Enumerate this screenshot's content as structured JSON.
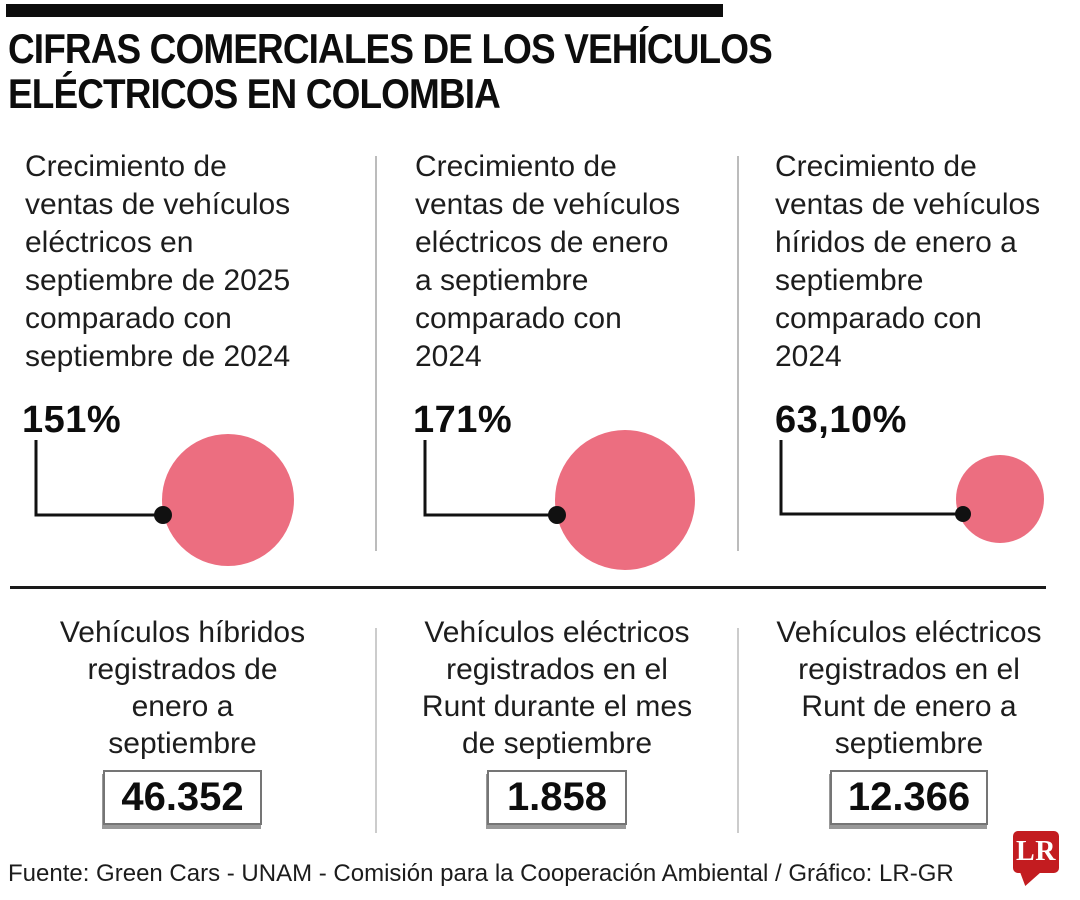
{
  "header": {
    "title_line1": "CIFRAS COMERCIALES DE LOS VEHÍCULOS",
    "title_line2": "ELÉCTRICOS EN COLOMBIA"
  },
  "colors": {
    "bubble_pink": "#EC6E80",
    "connector_black": "#111111",
    "logo_red": "#C31C20",
    "divider_black": "#1A1A1A"
  },
  "growth_stats": [
    {
      "description": "Crecimiento de\nventas de vehículos\neléctricos en\nseptiembre de 2025\ncomparado con\nseptiembre de 2024",
      "value": "151%"
    },
    {
      "description": "Crecimiento de\nventas de vehículos\neléctricos de enero\na septiembre\ncomparado con\n2024",
      "value": "171%"
    },
    {
      "description": "Crecimiento de\nventas de vehículos\nhíridos de enero a\nseptiembre\ncomparado con\n2024",
      "value": "63,10%"
    }
  ],
  "registration_stats": [
    {
      "description": "Vehículos híbridos\nregistrados de\nenero a\nseptiembre",
      "value": "46.352"
    },
    {
      "description": "Vehículos eléctricos\nregistrados en el\nRunt durante el mes\nde septiembre",
      "value": "1.858"
    },
    {
      "description": "Vehículos eléctricos\nregistrados en el\nRunt de enero a\nseptiembre",
      "value": "12.366"
    }
  ],
  "footer": {
    "source": "Fuente: Green Cars - UNAM - Comisión para la Cooperación Ambiental / Gráfico: LR-GR",
    "logo_text": "LR"
  },
  "chart_data": {
    "type": "bubble",
    "title": "Cifras comerciales de los vehículos eléctricos en Colombia",
    "series": [
      {
        "name": "Crecimiento de ventas de vehículos eléctricos en septiembre de 2025 comparado con septiembre de 2024",
        "value_pct": 151.0,
        "display": "151%",
        "bubble_radius_px": 66
      },
      {
        "name": "Crecimiento de ventas de vehículos eléctricos de enero a septiembre comparado con 2024",
        "value_pct": 171.0,
        "display": "171%",
        "bubble_radius_px": 70
      },
      {
        "name": "Crecimiento de ventas de vehículos híridos de enero a septiembre comparado con 2024",
        "value_pct": 63.1,
        "display": "63,10%",
        "bubble_radius_px": 44
      }
    ],
    "counters": [
      {
        "name": "Vehículos híbridos registrados de enero a septiembre",
        "value": 46352,
        "display": "46.352"
      },
      {
        "name": "Vehículos eléctricos registrados en el Runt durante el mes de septiembre",
        "value": 1858,
        "display": "1.858"
      },
      {
        "name": "Vehículos eléctricos registrados en el Runt de enero a septiembre",
        "value": 12366,
        "display": "12.366"
      }
    ],
    "legend": false,
    "grid": false
  }
}
